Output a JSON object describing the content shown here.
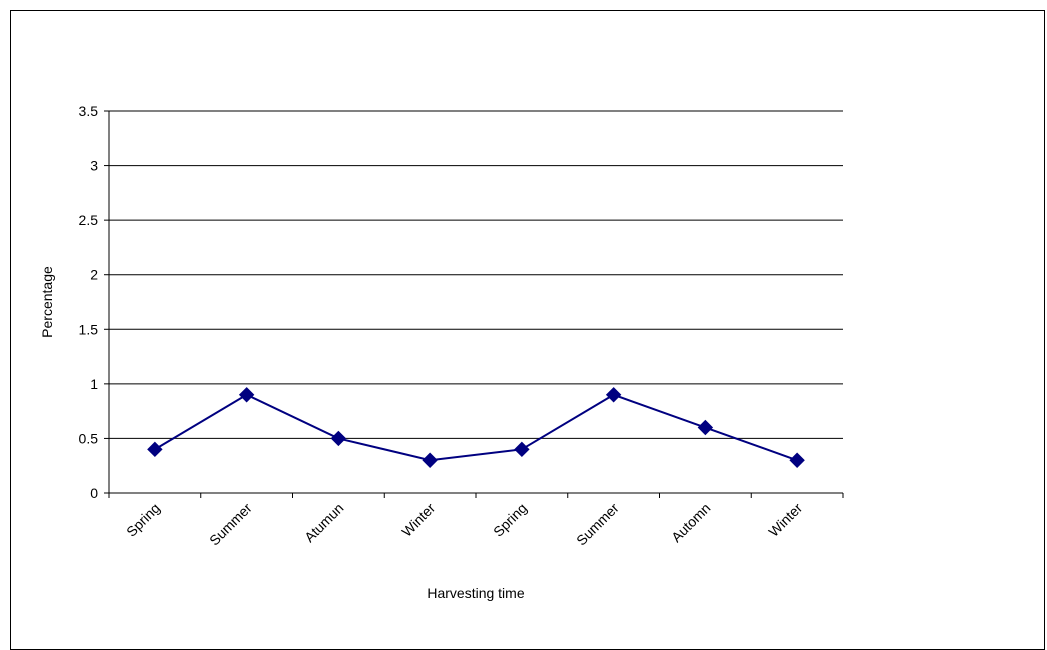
{
  "chart_data": {
    "type": "line",
    "title": "",
    "xlabel": "Harvesting time",
    "ylabel": "Percentage",
    "categories": [
      "Spring",
      "Summer",
      "Atumun",
      "Winter",
      "Spring",
      "Summer",
      "Automn",
      "Winter"
    ],
    "series": [
      {
        "values": [
          0.4,
          0.9,
          0.5,
          0.3,
          0.4,
          0.9,
          0.6,
          0.3
        ],
        "color": "#000080",
        "marker": "diamond"
      }
    ],
    "ylim": [
      0,
      3.5
    ],
    "yticks": [
      0,
      0.5,
      1,
      1.5,
      2,
      2.5,
      3,
      3.5
    ],
    "ytick_labels": [
      "0",
      "0.5",
      "1",
      "1.5",
      "2",
      "2.5",
      "3",
      "3.5"
    ],
    "grid": true,
    "legend": "none"
  }
}
